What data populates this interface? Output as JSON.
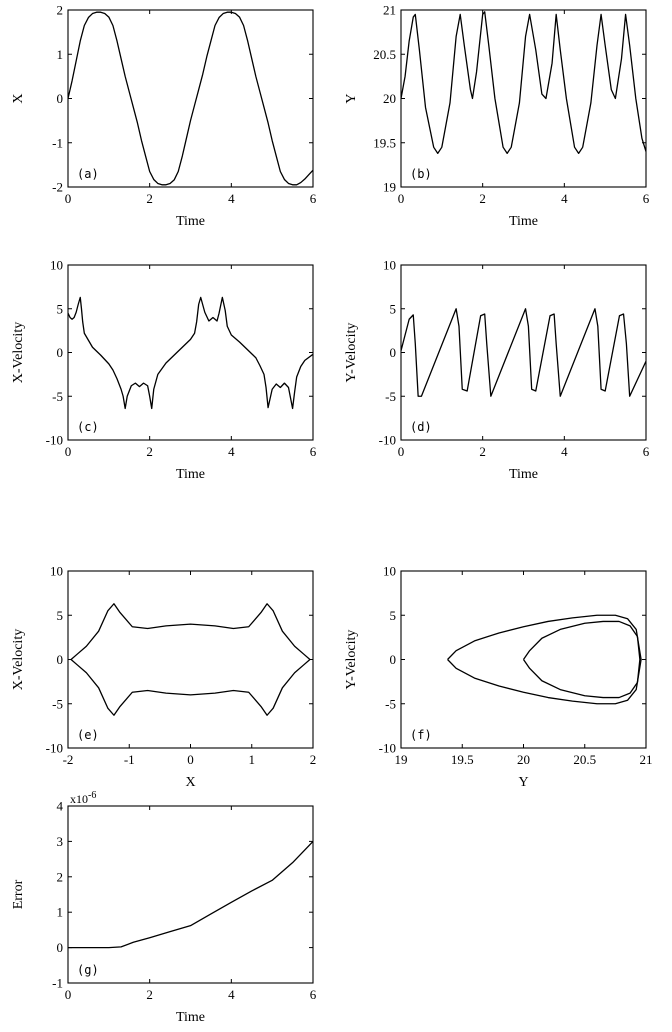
{
  "chart_data": [
    {
      "id": "a",
      "type": "line",
      "panel_label": "(a)",
      "xlabel": "Time",
      "ylabel": "X",
      "xlim": [
        0,
        6
      ],
      "ylim": [
        -2,
        2
      ],
      "xticks": [
        0,
        2,
        4,
        6
      ],
      "yticks": [
        -2,
        -1,
        0,
        1,
        2
      ],
      "series": [
        {
          "x": [
            0,
            0.1,
            0.2,
            0.3,
            0.4,
            0.5,
            0.6,
            0.7,
            0.8,
            0.9,
            1.0,
            1.1,
            1.2,
            1.3,
            1.4,
            1.5,
            1.6,
            1.7,
            1.8,
            1.9,
            2.0,
            2.1,
            2.2,
            2.3,
            2.4,
            2.5,
            2.6,
            2.7,
            2.8,
            2.9,
            3.0,
            3.1,
            3.2,
            3.3,
            3.4,
            3.5,
            3.6,
            3.7,
            3.8,
            3.9,
            4.0,
            4.1,
            4.2,
            4.3,
            4.4,
            4.5,
            4.6,
            4.7,
            4.8,
            4.9,
            5.0,
            5.1,
            5.2,
            5.3,
            5.4,
            5.5,
            5.6,
            5.7,
            5.8,
            5.9,
            6.0
          ],
          "y": [
            0,
            0.4,
            0.85,
            1.3,
            1.65,
            1.83,
            1.92,
            1.95,
            1.95,
            1.92,
            1.84,
            1.65,
            1.3,
            0.9,
            0.5,
            0.15,
            -0.2,
            -0.55,
            -0.95,
            -1.3,
            -1.65,
            -1.83,
            -1.92,
            -1.95,
            -1.95,
            -1.92,
            -1.84,
            -1.65,
            -1.3,
            -0.9,
            -0.5,
            -0.15,
            0.2,
            0.55,
            0.95,
            1.3,
            1.65,
            1.83,
            1.92,
            1.95,
            1.95,
            1.92,
            1.84,
            1.65,
            1.3,
            0.9,
            0.5,
            0.15,
            -0.2,
            -0.55,
            -0.95,
            -1.3,
            -1.65,
            -1.83,
            -1.92,
            -1.95,
            -1.95,
            -1.9,
            -1.82,
            -1.72,
            -1.62
          ]
        }
      ]
    },
    {
      "id": "b",
      "type": "line",
      "panel_label": "(b)",
      "xlabel": "Time",
      "ylabel": "Y",
      "xlim": [
        0,
        6
      ],
      "ylim": [
        19,
        21
      ],
      "xticks": [
        0,
        2,
        4,
        6
      ],
      "yticks": [
        19,
        19.5,
        20,
        20.5,
        21
      ],
      "series": [
        {
          "x": [
            0,
            0.1,
            0.2,
            0.3,
            0.35,
            0.45,
            0.6,
            0.8,
            0.9,
            1.0,
            1.2,
            1.35,
            1.45,
            1.55,
            1.7,
            1.75,
            1.85,
            2.0,
            2.05,
            2.15,
            2.3,
            2.5,
            2.6,
            2.7,
            2.9,
            3.05,
            3.15,
            3.3,
            3.45,
            3.55,
            3.7,
            3.8,
            3.9,
            4.05,
            4.25,
            4.35,
            4.45,
            4.65,
            4.8,
            4.9,
            5.0,
            5.15,
            5.25,
            5.4,
            5.5,
            5.6,
            5.75,
            5.9,
            6.0
          ],
          "y": [
            20.0,
            20.25,
            20.65,
            20.92,
            20.95,
            20.55,
            19.9,
            19.45,
            19.38,
            19.45,
            19.95,
            20.7,
            20.95,
            20.6,
            20.1,
            20.0,
            20.3,
            20.95,
            20.98,
            20.6,
            20.0,
            19.45,
            19.38,
            19.45,
            19.95,
            20.7,
            20.95,
            20.55,
            20.05,
            20.0,
            20.4,
            20.95,
            20.55,
            20.0,
            19.45,
            19.38,
            19.45,
            19.95,
            20.6,
            20.95,
            20.6,
            20.1,
            20.0,
            20.45,
            20.95,
            20.6,
            20.0,
            19.55,
            19.4
          ]
        }
      ]
    },
    {
      "id": "c",
      "type": "line",
      "panel_label": "(c)",
      "xlabel": "Time",
      "ylabel": "X-Velocity",
      "xlim": [
        0,
        6
      ],
      "ylim": [
        -10,
        10
      ],
      "xticks": [
        0,
        2,
        4,
        6
      ],
      "yticks": [
        -10,
        -5,
        0,
        5,
        10
      ],
      "series": [
        {
          "x": [
            0,
            0.05,
            0.1,
            0.15,
            0.2,
            0.25,
            0.3,
            0.33,
            0.36,
            0.4,
            0.5,
            0.6,
            0.8,
            1.0,
            1.1,
            1.2,
            1.3,
            1.35,
            1.4,
            1.45,
            1.55,
            1.65,
            1.75,
            1.85,
            1.95,
            2.0,
            2.05,
            2.1,
            2.2,
            2.4,
            2.6,
            2.8,
            3.0,
            3.1,
            3.15,
            3.2,
            3.25,
            3.35,
            3.45,
            3.55,
            3.65,
            3.7,
            3.78,
            3.85,
            3.9,
            4.0,
            4.2,
            4.4,
            4.6,
            4.7,
            4.8,
            4.85,
            4.9,
            5.0,
            5.1,
            5.2,
            5.3,
            5.4,
            5.5,
            5.55,
            5.6,
            5.7,
            5.8,
            6.0
          ],
          "y": [
            4.5,
            4.0,
            3.8,
            4.0,
            4.6,
            5.5,
            6.3,
            5.0,
            3.5,
            2.2,
            1.4,
            0.6,
            -0.3,
            -1.3,
            -2.0,
            -3.0,
            -4.2,
            -5.0,
            -6.4,
            -5.0,
            -3.8,
            -3.5,
            -3.9,
            -3.5,
            -3.8,
            -5.0,
            -6.4,
            -4.2,
            -2.5,
            -1.2,
            -0.3,
            0.6,
            1.5,
            2.2,
            3.5,
            5.5,
            6.3,
            4.6,
            3.6,
            4.0,
            3.6,
            4.5,
            6.3,
            4.8,
            3.0,
            2.0,
            1.2,
            0.3,
            -0.6,
            -1.5,
            -2.5,
            -4.0,
            -6.3,
            -4.2,
            -3.6,
            -4.0,
            -3.5,
            -4.0,
            -6.4,
            -4.5,
            -2.8,
            -1.6,
            -0.9,
            -0.2
          ]
        }
      ]
    },
    {
      "id": "d",
      "type": "line",
      "panel_label": "(d)",
      "xlabel": "Time",
      "ylabel": "Y-Velocity",
      "xlim": [
        0,
        6
      ],
      "ylim": [
        -10,
        10
      ],
      "xticks": [
        0,
        2,
        4,
        6
      ],
      "yticks": [
        -10,
        -5,
        0,
        5,
        10
      ],
      "series": [
        {
          "x": [
            0,
            0.2,
            0.3,
            0.35,
            0.42,
            0.5,
            1.35,
            1.42,
            1.5,
            1.62,
            1.95,
            2.05,
            2.1,
            2.2,
            3.05,
            3.12,
            3.2,
            3.3,
            3.65,
            3.75,
            3.8,
            3.9,
            4.75,
            4.82,
            4.9,
            5.0,
            5.35,
            5.45,
            5.52,
            5.6,
            6.0
          ],
          "y": [
            0.2,
            3.8,
            4.3,
            1.0,
            -5.0,
            -5.0,
            5.0,
            3.0,
            -4.2,
            -4.4,
            4.2,
            4.4,
            1.0,
            -5.0,
            5.0,
            3.0,
            -4.2,
            -4.4,
            4.2,
            4.4,
            1.0,
            -5.0,
            5.0,
            3.0,
            -4.2,
            -4.4,
            4.2,
            4.4,
            1.0,
            -5.0,
            -1.0
          ]
        }
      ]
    },
    {
      "id": "e",
      "type": "line",
      "panel_label": "(e)",
      "xlabel": "X",
      "ylabel": "X-Velocity",
      "xlim": [
        -2,
        2
      ],
      "ylim": [
        -10,
        10
      ],
      "xticks": [
        -2,
        -1,
        0,
        1,
        2
      ],
      "yticks": [
        -10,
        -5,
        0,
        5,
        10
      ],
      "series": [
        {
          "x": [
            -1.95,
            -1.85,
            -1.7,
            -1.5,
            -1.35,
            -1.25,
            -1.15,
            -0.95,
            -0.7,
            -0.4,
            0,
            0.4,
            0.7,
            0.95,
            1.15,
            1.25,
            1.35,
            1.5,
            1.7,
            1.85,
            1.95,
            1.85,
            1.7,
            1.5,
            1.35,
            1.25,
            1.15,
            0.95,
            0.7,
            0.4,
            0,
            -0.4,
            -0.7,
            -0.95,
            -1.15,
            -1.25,
            -1.35,
            -1.5,
            -1.7,
            -1.85,
            -1.95
          ],
          "y": [
            0,
            0.6,
            1.5,
            3.2,
            5.5,
            6.3,
            5.3,
            3.7,
            3.5,
            3.8,
            4.0,
            3.8,
            3.5,
            3.7,
            5.3,
            6.3,
            5.5,
            3.2,
            1.5,
            0.6,
            0,
            -0.6,
            -1.5,
            -3.2,
            -5.5,
            -6.3,
            -5.3,
            -3.7,
            -3.5,
            -3.8,
            -4.0,
            -3.8,
            -3.5,
            -3.7,
            -5.3,
            -6.3,
            -5.5,
            -3.2,
            -1.5,
            -0.6,
            0
          ]
        }
      ]
    },
    {
      "id": "f",
      "type": "line",
      "panel_label": "(f)",
      "xlabel": "Y",
      "ylabel": "Y-Velocity",
      "xlim": [
        19,
        21
      ],
      "ylim": [
        -10,
        10
      ],
      "xticks": [
        19,
        19.5,
        20,
        20.5,
        21
      ],
      "yticks": [
        -10,
        -5,
        0,
        5,
        10
      ],
      "series": [
        {
          "x": [
            19.38,
            19.45,
            19.6,
            19.8,
            20.0,
            20.2,
            20.4,
            20.6,
            20.75,
            20.85,
            20.92,
            20.96,
            20.92,
            20.85,
            20.75,
            20.6,
            20.4,
            20.2,
            20.0,
            19.8,
            19.6,
            19.45,
            19.38
          ],
          "y": [
            0,
            1.0,
            2.1,
            3.0,
            3.7,
            4.3,
            4.7,
            5.0,
            5.0,
            4.6,
            3.4,
            0,
            -3.4,
            -4.6,
            -5.0,
            -5.0,
            -4.7,
            -4.3,
            -3.7,
            -3.0,
            -2.1,
            -1.0,
            0
          ]
        },
        {
          "x": [
            20.0,
            20.05,
            20.15,
            20.3,
            20.5,
            20.65,
            20.78,
            20.87,
            20.93,
            20.95,
            20.93,
            20.87,
            20.78,
            20.65,
            20.5,
            20.3,
            20.15,
            20.05,
            20.0
          ],
          "y": [
            0,
            1.0,
            2.4,
            3.4,
            4.1,
            4.3,
            4.3,
            3.8,
            2.6,
            0,
            -2.6,
            -3.8,
            -4.3,
            -4.3,
            -4.1,
            -3.4,
            -2.4,
            -1.0,
            0
          ]
        }
      ]
    },
    {
      "id": "g",
      "type": "line",
      "panel_label": "(g)",
      "xlabel": "Time",
      "ylabel": "Error",
      "exponent_label": "x10",
      "exponent_power": "-6",
      "xlim": [
        0,
        6
      ],
      "ylim": [
        -1,
        4
      ],
      "xticks": [
        0,
        2,
        4,
        6
      ],
      "yticks": [
        -1,
        0,
        1,
        2,
        3,
        4
      ],
      "series": [
        {
          "x": [
            0,
            0.5,
            1.0,
            1.3,
            1.6,
            2.0,
            2.5,
            3.0,
            3.5,
            4.0,
            4.5,
            5.0,
            5.5,
            6.0
          ],
          "y": [
            0,
            0,
            0,
            0.02,
            0.15,
            0.28,
            0.45,
            0.62,
            0.95,
            1.28,
            1.6,
            1.9,
            2.4,
            3.0
          ]
        }
      ]
    }
  ]
}
